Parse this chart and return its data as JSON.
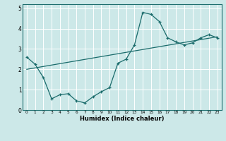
{
  "xlabel": "Humidex (Indice chaleur)",
  "ylabel": "",
  "bg_color": "#cce8e8",
  "line_color": "#1a6b6b",
  "grid_color": "#ffffff",
  "xlim": [
    -0.5,
    23.5
  ],
  "ylim": [
    0,
    5.2
  ],
  "xticks": [
    0,
    1,
    2,
    3,
    4,
    5,
    6,
    7,
    8,
    9,
    10,
    11,
    12,
    13,
    14,
    15,
    16,
    17,
    18,
    19,
    20,
    21,
    22,
    23
  ],
  "yticks": [
    0,
    1,
    2,
    3,
    4,
    5
  ],
  "curve1_x": [
    0,
    1,
    2,
    3,
    4,
    5,
    6,
    7,
    8,
    9,
    10,
    11,
    12,
    13,
    14,
    15,
    16,
    17,
    18,
    19,
    20,
    21,
    22,
    23
  ],
  "curve1_y": [
    2.6,
    2.25,
    1.6,
    0.55,
    0.75,
    0.8,
    0.45,
    0.35,
    0.65,
    0.9,
    1.1,
    2.3,
    2.5,
    3.2,
    4.8,
    4.7,
    4.35,
    3.55,
    3.35,
    3.2,
    3.3,
    3.55,
    3.7,
    3.55
  ],
  "curve2_x": [
    0,
    23
  ],
  "curve2_y": [
    2.0,
    3.6
  ]
}
